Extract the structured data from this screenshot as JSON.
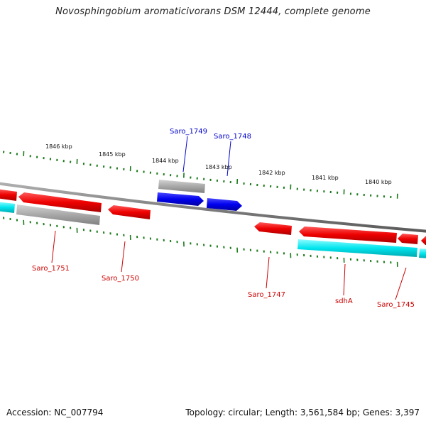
{
  "title": "Novosphingobium aromaticivorans DSM 12444, complete genome",
  "footer": {
    "accession": "Accession: NC_007794",
    "summary": "Topology: circular; Length: 3,561,584 bp; Genes: 3,397"
  },
  "colors": {
    "forward_cds": "#0000ff",
    "reverse_cds": "#ff0000",
    "reverse_gene": "#a8a8a8",
    "forward_gene": "#a8a8a8",
    "rna_feature": "#00e5ee",
    "backbone": "#808080",
    "tick": "#1a7a1a",
    "forward_label": "#0000cc",
    "reverse_label": "#cc0000"
  },
  "scale_labels": [
    "1846 kbp",
    "1845 kbp",
    "1844 kbp",
    "1843 kbp",
    "1842 kbp",
    "1841 kbp",
    "1840 kbp"
  ],
  "forward_labels": [
    "Saro_1749",
    "Saro_1748"
  ],
  "reverse_labels": [
    "Saro_1751",
    "Saro_1750",
    "Saro_1747",
    "sdhA",
    "Saro_1745"
  ]
}
